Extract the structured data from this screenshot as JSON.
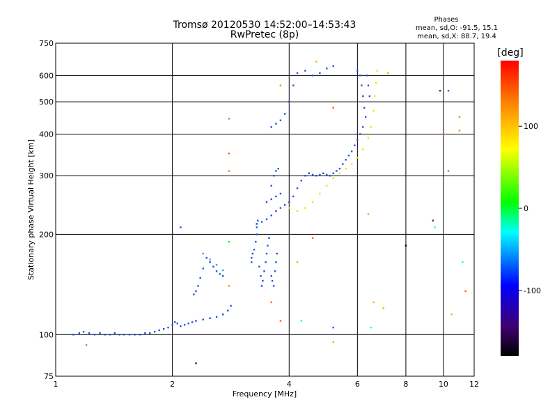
{
  "chart_data": {
    "type": "scatter",
    "title": "Tromsø 20120530 14:52:00–14:53:43",
    "subtitle": "RwPretec (8p)",
    "xlabel": "Frequency [MHz]",
    "ylabel": "Stationary phase Virtual Height [km]",
    "x_scale": "log",
    "y_scale": "log",
    "xlim": [
      1,
      12
    ],
    "ylim": [
      75,
      750
    ],
    "x_ticks": [
      1,
      2,
      4,
      6,
      8,
      10,
      12
    ],
    "y_ticks": [
      75,
      100,
      200,
      300,
      400,
      500,
      600,
      750
    ],
    "grid": true,
    "phase_summary": {
      "heading": "Phases",
      "line_o": "mean, sd,O: -91.5, 15.1",
      "line_x": "mean, sd,X: 88.7, 19.4"
    },
    "colorbar": {
      "label": "[deg]",
      "range": [
        -180,
        180
      ],
      "ticks": [
        100,
        0,
        -100
      ],
      "colors": [
        "#ff0000",
        "#ff8800",
        "#ffff00",
        "#00ff00",
        "#00ffff",
        "#0000ff",
        "#400070",
        "#000000"
      ]
    },
    "series": [
      {
        "phase": -100,
        "color": "#1f4fe8",
        "points": [
          [
            1.11,
            100
          ],
          [
            1.15,
            101
          ],
          [
            1.18,
            102
          ],
          [
            1.22,
            101
          ],
          [
            1.26,
            100
          ],
          [
            1.3,
            101
          ],
          [
            1.34,
            100
          ],
          [
            1.38,
            100
          ],
          [
            1.42,
            101
          ],
          [
            1.46,
            100
          ],
          [
            1.5,
            100
          ],
          [
            1.55,
            100
          ],
          [
            1.6,
            100
          ],
          [
            1.65,
            100
          ],
          [
            1.7,
            101
          ],
          [
            1.75,
            101
          ],
          [
            1.8,
            102
          ],
          [
            1.85,
            103
          ],
          [
            1.9,
            104
          ],
          [
            1.95,
            105
          ],
          [
            2.0,
            107
          ],
          [
            2.03,
            109
          ],
          [
            2.06,
            108
          ],
          [
            2.1,
            106
          ],
          [
            2.15,
            107
          ],
          [
            2.2,
            108
          ],
          [
            2.25,
            109
          ],
          [
            2.3,
            110
          ],
          [
            2.4,
            111
          ],
          [
            2.5,
            112
          ],
          [
            2.6,
            113
          ],
          [
            2.7,
            115
          ],
          [
            2.78,
            118
          ],
          [
            2.83,
            122
          ],
          [
            2.27,
            132
          ],
          [
            2.3,
            135
          ],
          [
            2.33,
            140
          ],
          [
            2.36,
            148
          ],
          [
            2.4,
            158
          ],
          [
            2.45,
            170
          ],
          [
            2.5,
            165
          ],
          [
            2.55,
            160
          ],
          [
            2.6,
            155
          ],
          [
            2.65,
            152
          ],
          [
            2.7,
            150
          ],
          [
            3.2,
            165
          ],
          [
            3.2,
            170
          ],
          [
            3.22,
            175
          ],
          [
            3.25,
            180
          ],
          [
            3.28,
            190
          ],
          [
            3.3,
            200
          ],
          [
            3.3,
            210
          ],
          [
            3.32,
            220
          ],
          [
            3.35,
            160
          ],
          [
            3.38,
            150
          ],
          [
            3.4,
            140
          ],
          [
            3.42,
            145
          ],
          [
            3.45,
            155
          ],
          [
            3.48,
            165
          ],
          [
            3.5,
            175
          ],
          [
            3.52,
            185
          ],
          [
            3.55,
            195
          ],
          [
            3.6,
            150
          ],
          [
            3.62,
            145
          ],
          [
            3.65,
            140
          ],
          [
            3.68,
            155
          ],
          [
            3.7,
            165
          ],
          [
            3.72,
            175
          ],
          [
            3.3,
            215
          ],
          [
            3.4,
            218
          ],
          [
            3.5,
            222
          ],
          [
            3.6,
            228
          ],
          [
            3.7,
            235
          ],
          [
            3.8,
            240
          ],
          [
            3.9,
            245
          ],
          [
            4.0,
            250
          ],
          [
            4.1,
            260
          ],
          [
            4.2,
            275
          ],
          [
            4.3,
            290
          ],
          [
            4.4,
            300
          ],
          [
            4.5,
            305
          ],
          [
            4.6,
            302
          ],
          [
            4.7,
            300
          ],
          [
            4.8,
            302
          ],
          [
            4.9,
            305
          ],
          [
            5.0,
            302
          ],
          [
            5.1,
            300
          ],
          [
            5.2,
            305
          ],
          [
            5.3,
            310
          ],
          [
            5.4,
            315
          ],
          [
            5.5,
            325
          ],
          [
            5.6,
            335
          ],
          [
            5.7,
            345
          ],
          [
            5.8,
            355
          ],
          [
            5.9,
            370
          ],
          [
            6.0,
            385
          ],
          [
            6.1,
            400
          ],
          [
            6.2,
            420
          ],
          [
            3.5,
            250
          ],
          [
            3.6,
            255
          ],
          [
            3.7,
            260
          ],
          [
            3.8,
            265
          ],
          [
            3.6,
            280
          ],
          [
            3.65,
            300
          ],
          [
            3.7,
            310
          ],
          [
            3.75,
            315
          ],
          [
            3.6,
            420
          ],
          [
            3.7,
            430
          ],
          [
            3.8,
            440
          ],
          [
            3.9,
            460
          ],
          [
            4.0,
            500
          ],
          [
            4.1,
            560
          ],
          [
            4.2,
            610
          ],
          [
            4.4,
            620
          ],
          [
            4.6,
            600
          ],
          [
            4.8,
            610
          ],
          [
            5.0,
            630
          ],
          [
            5.2,
            640
          ],
          [
            6.0,
            620
          ],
          [
            6.1,
            600
          ],
          [
            6.15,
            560
          ],
          [
            6.2,
            520
          ],
          [
            6.25,
            480
          ],
          [
            6.3,
            450
          ],
          [
            6.35,
            600
          ],
          [
            6.4,
            560
          ],
          [
            6.45,
            520
          ]
        ]
      },
      {
        "phase": 90,
        "color": "#e8e800",
        "points": [
          [
            4.0,
            240
          ],
          [
            4.2,
            235
          ],
          [
            4.4,
            240
          ],
          [
            4.6,
            250
          ],
          [
            4.8,
            265
          ],
          [
            5.0,
            280
          ],
          [
            5.2,
            295
          ],
          [
            5.4,
            305
          ],
          [
            5.6,
            315
          ],
          [
            5.8,
            325
          ],
          [
            6.0,
            340
          ],
          [
            6.2,
            360
          ],
          [
            6.4,
            390
          ],
          [
            6.5,
            420
          ],
          [
            6.6,
            470
          ],
          [
            6.65,
            520
          ],
          [
            6.7,
            570
          ],
          [
            6.75,
            620
          ]
        ]
      },
      {
        "phase": -80,
        "color": "#3fa0ff",
        "points": [
          [
            2.4,
            175
          ],
          [
            2.5,
            168
          ],
          [
            2.6,
            162
          ],
          [
            2.7,
            156
          ]
        ]
      }
    ],
    "outliers": [
      [
        1.2,
        93,
        "#3fa0ff"
      ],
      [
        2.1,
        210,
        "#1f4fe8"
      ],
      [
        2.3,
        82,
        "#800000"
      ],
      [
        2.8,
        445,
        "#3fa0ff"
      ],
      [
        2.8,
        350,
        "#ff6000"
      ],
      [
        2.8,
        310,
        "#ff8800"
      ],
      [
        2.8,
        190,
        "#00ff00"
      ],
      [
        2.8,
        140,
        "#ff8800"
      ],
      [
        3.6,
        125,
        "#ff6000"
      ],
      [
        3.8,
        560,
        "#ff8800"
      ],
      [
        3.8,
        110,
        "#ff6000"
      ],
      [
        4.2,
        165,
        "#ffaa00"
      ],
      [
        4.3,
        110,
        "#00ffff"
      ],
      [
        4.6,
        195,
        "#ff6000"
      ],
      [
        4.7,
        660,
        "#ffaa00"
      ],
      [
        5.2,
        480,
        "#ff6000"
      ],
      [
        5.2,
        95,
        "#ffaa00"
      ],
      [
        5.2,
        105,
        "#1f4fe8"
      ],
      [
        6.4,
        230,
        "#ffaa00"
      ],
      [
        6.5,
        105,
        "#00ffff"
      ],
      [
        6.6,
        125,
        "#ffaa00"
      ],
      [
        7.0,
        120,
        "#ffaa00"
      ],
      [
        7.2,
        610,
        "#ffaa00"
      ],
      [
        8.0,
        185,
        "#000000"
      ],
      [
        9.4,
        220,
        "#800080"
      ],
      [
        9.5,
        210,
        "#00ffff"
      ],
      [
        9.8,
        540,
        "#800000"
      ],
      [
        10.0,
        400,
        "#ff6000"
      ],
      [
        10.3,
        540,
        "#1f4fe8"
      ],
      [
        10.3,
        310,
        "#3fa0ff"
      ],
      [
        10.5,
        115,
        "#ffaa00"
      ],
      [
        11.0,
        450,
        "#ff8800"
      ],
      [
        11.0,
        410,
        "#ff8800"
      ],
      [
        11.2,
        165,
        "#00ffff"
      ],
      [
        11.4,
        135,
        "#ff6000"
      ]
    ]
  }
}
